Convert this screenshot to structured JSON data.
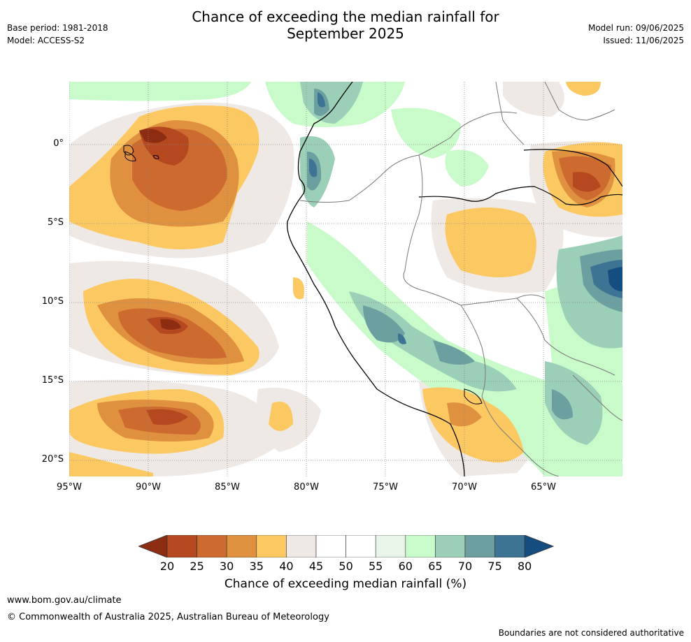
{
  "header": {
    "title_line1": "Chance of exceeding the median rainfall for",
    "title_line2": "September 2025",
    "base_period": "Base period: 1981-2018",
    "model": "Model: ACCESS-S2",
    "model_run": "Model run: 09/06/2025",
    "issued": "Issued: 11/06/2025"
  },
  "map": {
    "lat_labels": [
      "0°",
      "5°S",
      "10°S",
      "15°S",
      "20°S"
    ],
    "lon_labels": [
      "95°W",
      "90°W",
      "85°W",
      "80°W",
      "75°W",
      "70°W",
      "65°W"
    ],
    "lon_range": [
      -95,
      -60
    ],
    "lat_range": [
      -21,
      4
    ]
  },
  "colorbar": {
    "label": "Chance of exceeding median rainfall (%)",
    "ticks": [
      "20",
      "25",
      "30",
      "35",
      "40",
      "45",
      "50",
      "55",
      "60",
      "65",
      "70",
      "75",
      "80"
    ],
    "colors": [
      "#8c2d12",
      "#b5481f",
      "#cc6a30",
      "#e0913f",
      "#fcc862",
      "#efe9e6",
      "#ffffff",
      "#ffffff",
      "#e9f5e9",
      "#c8fbc9",
      "#9ccfb8",
      "#6c9f9f",
      "#3d7494",
      "#164d80"
    ]
  },
  "footer": {
    "url": "www.bom.gov.au/climate",
    "copyright": "© Commonwealth of Australia 2025, Australian Bureau of Meteorology",
    "disclaimer": "Boundaries are not considered authoritative"
  }
}
